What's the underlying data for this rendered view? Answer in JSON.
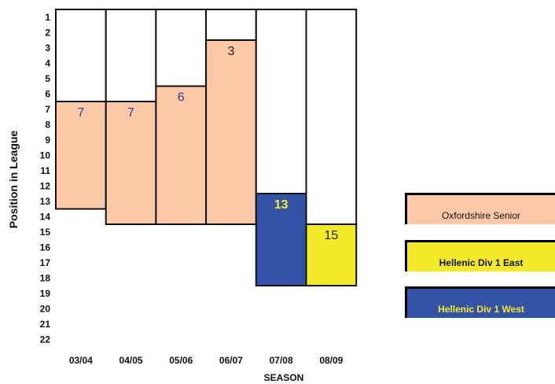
{
  "chart_data": {
    "type": "bar",
    "xlabel": "SEASON",
    "ylabel": "Position in League",
    "categories": [
      "03/04",
      "04/05",
      "05/06",
      "06/07",
      "07/08",
      "08/09"
    ],
    "values": [
      7,
      7,
      6,
      3,
      13,
      15
    ],
    "bar_bottoms": [
      14,
      15,
      15,
      15,
      19,
      19
    ],
    "bar_divisions": [
      "Oxfordshire Senior",
      "Oxfordshire Senior",
      "Oxfordshire Senior",
      "Oxfordshire Senior",
      "Hellenic Div 1 West",
      "Hellenic Div 1 East"
    ],
    "label_colors": [
      "#3a3a8c",
      "#3a3a8c",
      "#3a3a8c",
      "#222222",
      "#f2ea2a",
      "#222222"
    ],
    "label_bold": [
      false,
      false,
      false,
      false,
      true,
      false
    ],
    "yticks": [
      1,
      2,
      3,
      4,
      5,
      6,
      7,
      8,
      9,
      10,
      11,
      12,
      13,
      14,
      15,
      16,
      17,
      18,
      19,
      20,
      21,
      22
    ],
    "ylim": [
      1,
      22
    ],
    "y_inverted": true,
    "legend": [
      {
        "label": "Oxfordshire Senior",
        "color": "#fbc8a8",
        "text_color": "#111111",
        "bold": false
      },
      {
        "label": "Hellenic Div 1 East",
        "color": "#f2ea2a",
        "text_color": "#111111",
        "bold": true
      },
      {
        "label": "Hellenic Div 1 West",
        "color": "#3553a6",
        "text_color": "#f2ea2a",
        "bold": true
      }
    ],
    "legend_position": "right"
  }
}
